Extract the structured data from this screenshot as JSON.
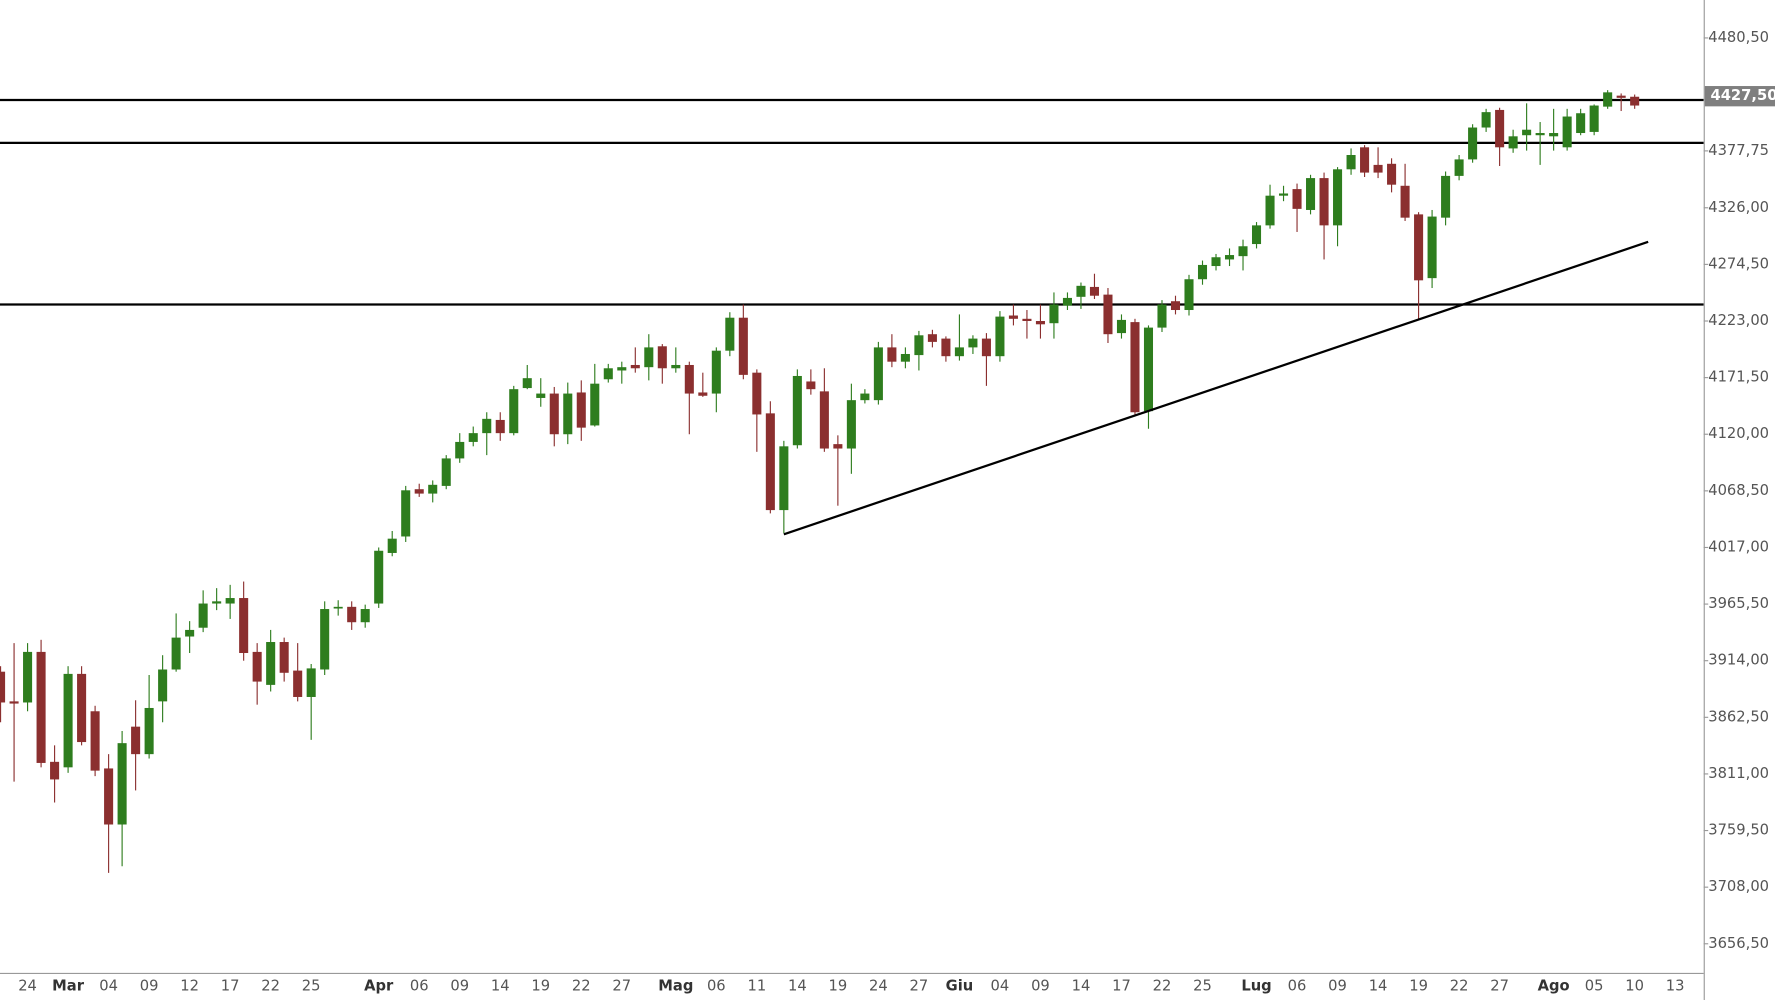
{
  "chart_data": {
    "type": "candlestick",
    "up_color": "#2e7d1e",
    "down_color": "#8b2f2f",
    "categories": [
      null,
      null,
      "24",
      null,
      null,
      "Mar",
      null,
      null,
      "04",
      null,
      null,
      "09",
      null,
      null,
      "12",
      null,
      null,
      "17",
      null,
      null,
      "22",
      null,
      null,
      "25",
      null,
      null,
      null,
      null,
      "Apr",
      null,
      null,
      "06",
      null,
      null,
      "09",
      null,
      null,
      "14",
      null,
      null,
      "19",
      null,
      null,
      "22",
      null,
      null,
      "27",
      null,
      null,
      null,
      "Mag",
      null,
      null,
      "06",
      null,
      null,
      "11",
      null,
      null,
      "14",
      null,
      null,
      "19",
      null,
      null,
      "24",
      null,
      null,
      "27",
      null,
      null,
      "Giu",
      null,
      null,
      "04",
      null,
      null,
      "09",
      null,
      null,
      "14",
      null,
      null,
      "17",
      null,
      null,
      "22",
      null,
      null,
      "25",
      null,
      null,
      null,
      "Lug",
      null,
      null,
      "06",
      null,
      null,
      "09",
      null,
      null,
      "14",
      null,
      null,
      "19",
      null,
      null,
      "22",
      null,
      null,
      "27",
      null,
      null,
      null,
      "Ago",
      null,
      null,
      "05",
      null,
      null,
      "10",
      null,
      null,
      "13"
    ],
    "open": [
      3904,
      3877,
      3876,
      3922,
      3822,
      3817,
      3902,
      3868,
      3816,
      3765,
      3854,
      3829,
      3877,
      3906,
      3936,
      3944,
      3966,
      3966,
      3971,
      3922,
      3892,
      3931,
      3905,
      3881,
      3906,
      3962,
      3963,
      3949,
      3966,
      4012,
      4027,
      4070,
      4066,
      4073,
      4098,
      4113,
      4121,
      4133,
      4121,
      4162,
      4153,
      4157,
      4120,
      4158,
      4128,
      4170,
      4178,
      4183,
      4181,
      4200,
      4180,
      4183,
      4158,
      4157,
      4196,
      4226,
      4176,
      4139,
      4051,
      4110,
      4168,
      4159,
      4111,
      4107,
      4151,
      4151,
      4199,
      4186,
      4192,
      4211,
      4207,
      4191,
      4199,
      4207,
      4191,
      4228,
      4225,
      4223,
      4221,
      4237,
      4245,
      4254,
      4247,
      4212,
      4222,
      4141,
      4217,
      4241,
      4233,
      4261,
      4273,
      4279,
      4282,
      4293,
      4310,
      4337,
      4343,
      4324,
      4353,
      4310,
      4361,
      4381,
      4365,
      4366,
      4346,
      4320,
      4262,
      4317,
      4355,
      4370,
      4399,
      4415,
      4380,
      4392,
      4392,
      4391,
      4381,
      4394,
      4395,
      4418,
      4428,
      4427,
      null,
      null,
      null
    ],
    "high": [
      3909,
      3930,
      3930,
      3933,
      3837,
      3909,
      3909,
      3873,
      3829,
      3850,
      3878,
      3901,
      3919,
      3957,
      3950,
      3978,
      3980,
      3983,
      3986,
      3930,
      3942,
      3935,
      3930,
      3911,
      3968,
      3969,
      3968,
      3965,
      4017,
      4032,
      4073,
      4075,
      4078,
      4101,
      4121,
      4127,
      4140,
      4140,
      4164,
      4183,
      4171,
      4163,
      4167,
      4169,
      4184,
      4184,
      4186,
      4199,
      4211,
      4202,
      4199,
      4186,
      4176,
      4199,
      4231,
      4238,
      4179,
      4150,
      4114,
      4179,
      4179,
      4180,
      4119,
      4166,
      4161,
      4204,
      4211,
      4199,
      4214,
      4215,
      4209,
      4229,
      4210,
      4212,
      4232,
      4238,
      4233,
      4238,
      4249,
      4249,
      4258,
      4266,
      4253,
      4229,
      4225,
      4219,
      4242,
      4246,
      4265,
      4278,
      4284,
      4289,
      4297,
      4313,
      4347,
      4346,
      4348,
      4356,
      4358,
      4363,
      4380,
      4383,
      4381,
      4371,
      4366,
      4322,
      4324,
      4359,
      4374,
      4402,
      4416,
      4417,
      4397,
      4421,
      4404,
      4416,
      4416,
      4416,
      4420,
      4433,
      4430,
      4429,
      null,
      null,
      null
    ],
    "low": [
      3858,
      3804,
      3868,
      3817,
      3785,
      3812,
      3837,
      3809,
      3721,
      3727,
      3796,
      3825,
      3858,
      3904,
      3921,
      3940,
      3960,
      3952,
      3914,
      3874,
      3886,
      3895,
      3877,
      3842,
      3901,
      3955,
      3942,
      3944,
      3962,
      4009,
      4022,
      4063,
      4058,
      4070,
      4094,
      4109,
      4101,
      4114,
      4119,
      4161,
      4145,
      4109,
      4111,
      4114,
      4127,
      4167,
      4166,
      4176,
      4169,
      4166,
      4176,
      4120,
      4154,
      4140,
      4191,
      4170,
      4104,
      4048,
      4030,
      4107,
      4156,
      4104,
      4055,
      4084,
      4148,
      4147,
      4181,
      4180,
      4178,
      4199,
      4186,
      4187,
      4193,
      4164,
      4186,
      4219,
      4207,
      4207,
      4207,
      4233,
      4234,
      4243,
      4203,
      4207,
      4138,
      4125,
      4213,
      4229,
      4228,
      4256,
      4269,
      4273,
      4269,
      4289,
      4307,
      4332,
      4304,
      4320,
      4279,
      4291,
      4356,
      4354,
      4353,
      4340,
      4314,
      4224,
      4253,
      4310,
      4351,
      4367,
      4395,
      4364,
      4376,
      4378,
      4365,
      4378,
      4378,
      4392,
      4392,
      4416,
      4414,
      4416,
      null,
      null,
      null
    ],
    "close": [
      3876,
      3875,
      3922,
      3821,
      3806,
      3902,
      3840,
      3814,
      3765,
      3839,
      3829,
      3871,
      3906,
      3935,
      3942,
      3966,
      3968,
      3971,
      3921,
      3895,
      3931,
      3903,
      3881,
      3907,
      3961,
      3963,
      3949,
      3961,
      4014,
      4025,
      4069,
      4066,
      4074,
      4098,
      4113,
      4121,
      4134,
      4121,
      4161,
      4171,
      4157,
      4120,
      4157,
      4126,
      4166,
      4180,
      4181,
      4180,
      4199,
      4180,
      4183,
      4157,
      4155,
      4196,
      4226,
      4174,
      4138,
      4051,
      4109,
      4173,
      4161,
      4107,
      4107,
      4151,
      4157,
      4199,
      4186,
      4193,
      4210,
      4204,
      4191,
      4199,
      4207,
      4191,
      4227,
      4225,
      4223,
      4220,
      4238,
      4244,
      4255,
      4246,
      4211,
      4224,
      4140,
      4217,
      4238,
      4233,
      4261,
      4274,
      4281,
      4283,
      4291,
      4310,
      4337,
      4339,
      4325,
      4353,
      4310,
      4361,
      4374,
      4358,
      4358,
      4347,
      4317,
      4260,
      4318,
      4355,
      4370,
      4399,
      4413,
      4381,
      4391,
      4397,
      4394,
      4394,
      4409,
      4412,
      4419,
      4431,
      4426,
      4419,
      null,
      null,
      null
    ],
    "ylim": [
      3630,
      4515
    ],
    "yticks": [
      {
        "value": 3656.5,
        "label": "3656,50"
      },
      {
        "value": 3708,
        "label": "3708,00"
      },
      {
        "value": 3759.5,
        "label": "3759,50"
      },
      {
        "value": 3811,
        "label": "3811,00"
      },
      {
        "value": 3862.5,
        "label": "3862,50"
      },
      {
        "value": 3914,
        "label": "3914,00"
      },
      {
        "value": 3965.5,
        "label": "3965,50"
      },
      {
        "value": 4017,
        "label": "4017,00"
      },
      {
        "value": 4068.5,
        "label": "4068,50"
      },
      {
        "value": 4120,
        "label": "4120,00"
      },
      {
        "value": 4171.5,
        "label": "4171,50"
      },
      {
        "value": 4223,
        "label": "4223,00"
      },
      {
        "value": 4274.5,
        "label": "4274,50"
      },
      {
        "value": 4326,
        "label": "4326,00"
      },
      {
        "value": 4377.75,
        "label": "4377,75"
      },
      {
        "value": 4480.5,
        "label": "4480,50"
      }
    ],
    "last_price": {
      "value": 4427.5,
      "label": "4427,50"
    },
    "hlines": [
      4424,
      4385,
      4238
    ],
    "trendline": {
      "x": [
        58,
        122
      ],
      "values": [
        4029,
        4295
      ]
    }
  }
}
